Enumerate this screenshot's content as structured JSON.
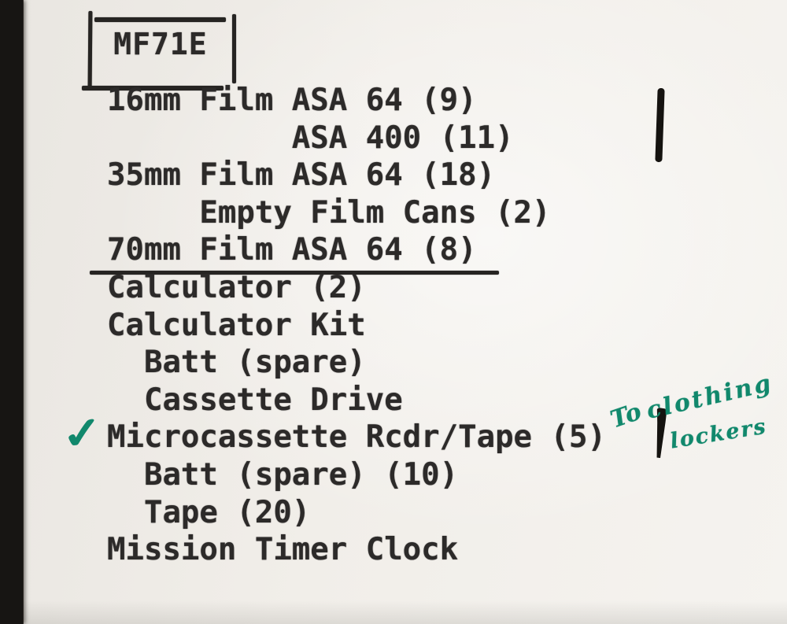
{
  "page": {
    "header_box": {
      "label": "MF71E"
    },
    "checklist": {
      "items": [
        {
          "text": "16mm Film ASA 64 (9)",
          "indent": 0
        },
        {
          "text": "ASA 400 (11)",
          "indent": 10
        },
        {
          "text": "35mm Film ASA 64 (18)",
          "indent": 0
        },
        {
          "text": "Empty Film Cans (2)",
          "indent": 5
        },
        {
          "text": "70mm Film ASA 64 (8)",
          "indent": 0,
          "underline": true
        },
        {
          "text": "Calculator (2)",
          "indent": 0
        },
        {
          "text": "Calculator Kit",
          "indent": 0
        },
        {
          "text": "Batt (spare)",
          "indent": 2
        },
        {
          "text": "Cassette Drive",
          "indent": 2
        },
        {
          "text": "Microcassette Rcdr/Tape (5)",
          "indent": 0,
          "checked": true
        },
        {
          "text": "Batt (spare) (10)",
          "indent": 2
        },
        {
          "text": "Tape (20)",
          "indent": 2
        },
        {
          "text": "Mission Timer Clock",
          "indent": 0
        }
      ]
    },
    "handwritten_note": {
      "word1": "To",
      "word2": "clothing",
      "word3": "lockers"
    },
    "marks": {
      "checkmark_glyph": "✓"
    },
    "colors": {
      "paper": "#f0ede8",
      "ink": "#2c2a29",
      "green_ink": "#11886c",
      "scan_edge": "#171513"
    }
  }
}
